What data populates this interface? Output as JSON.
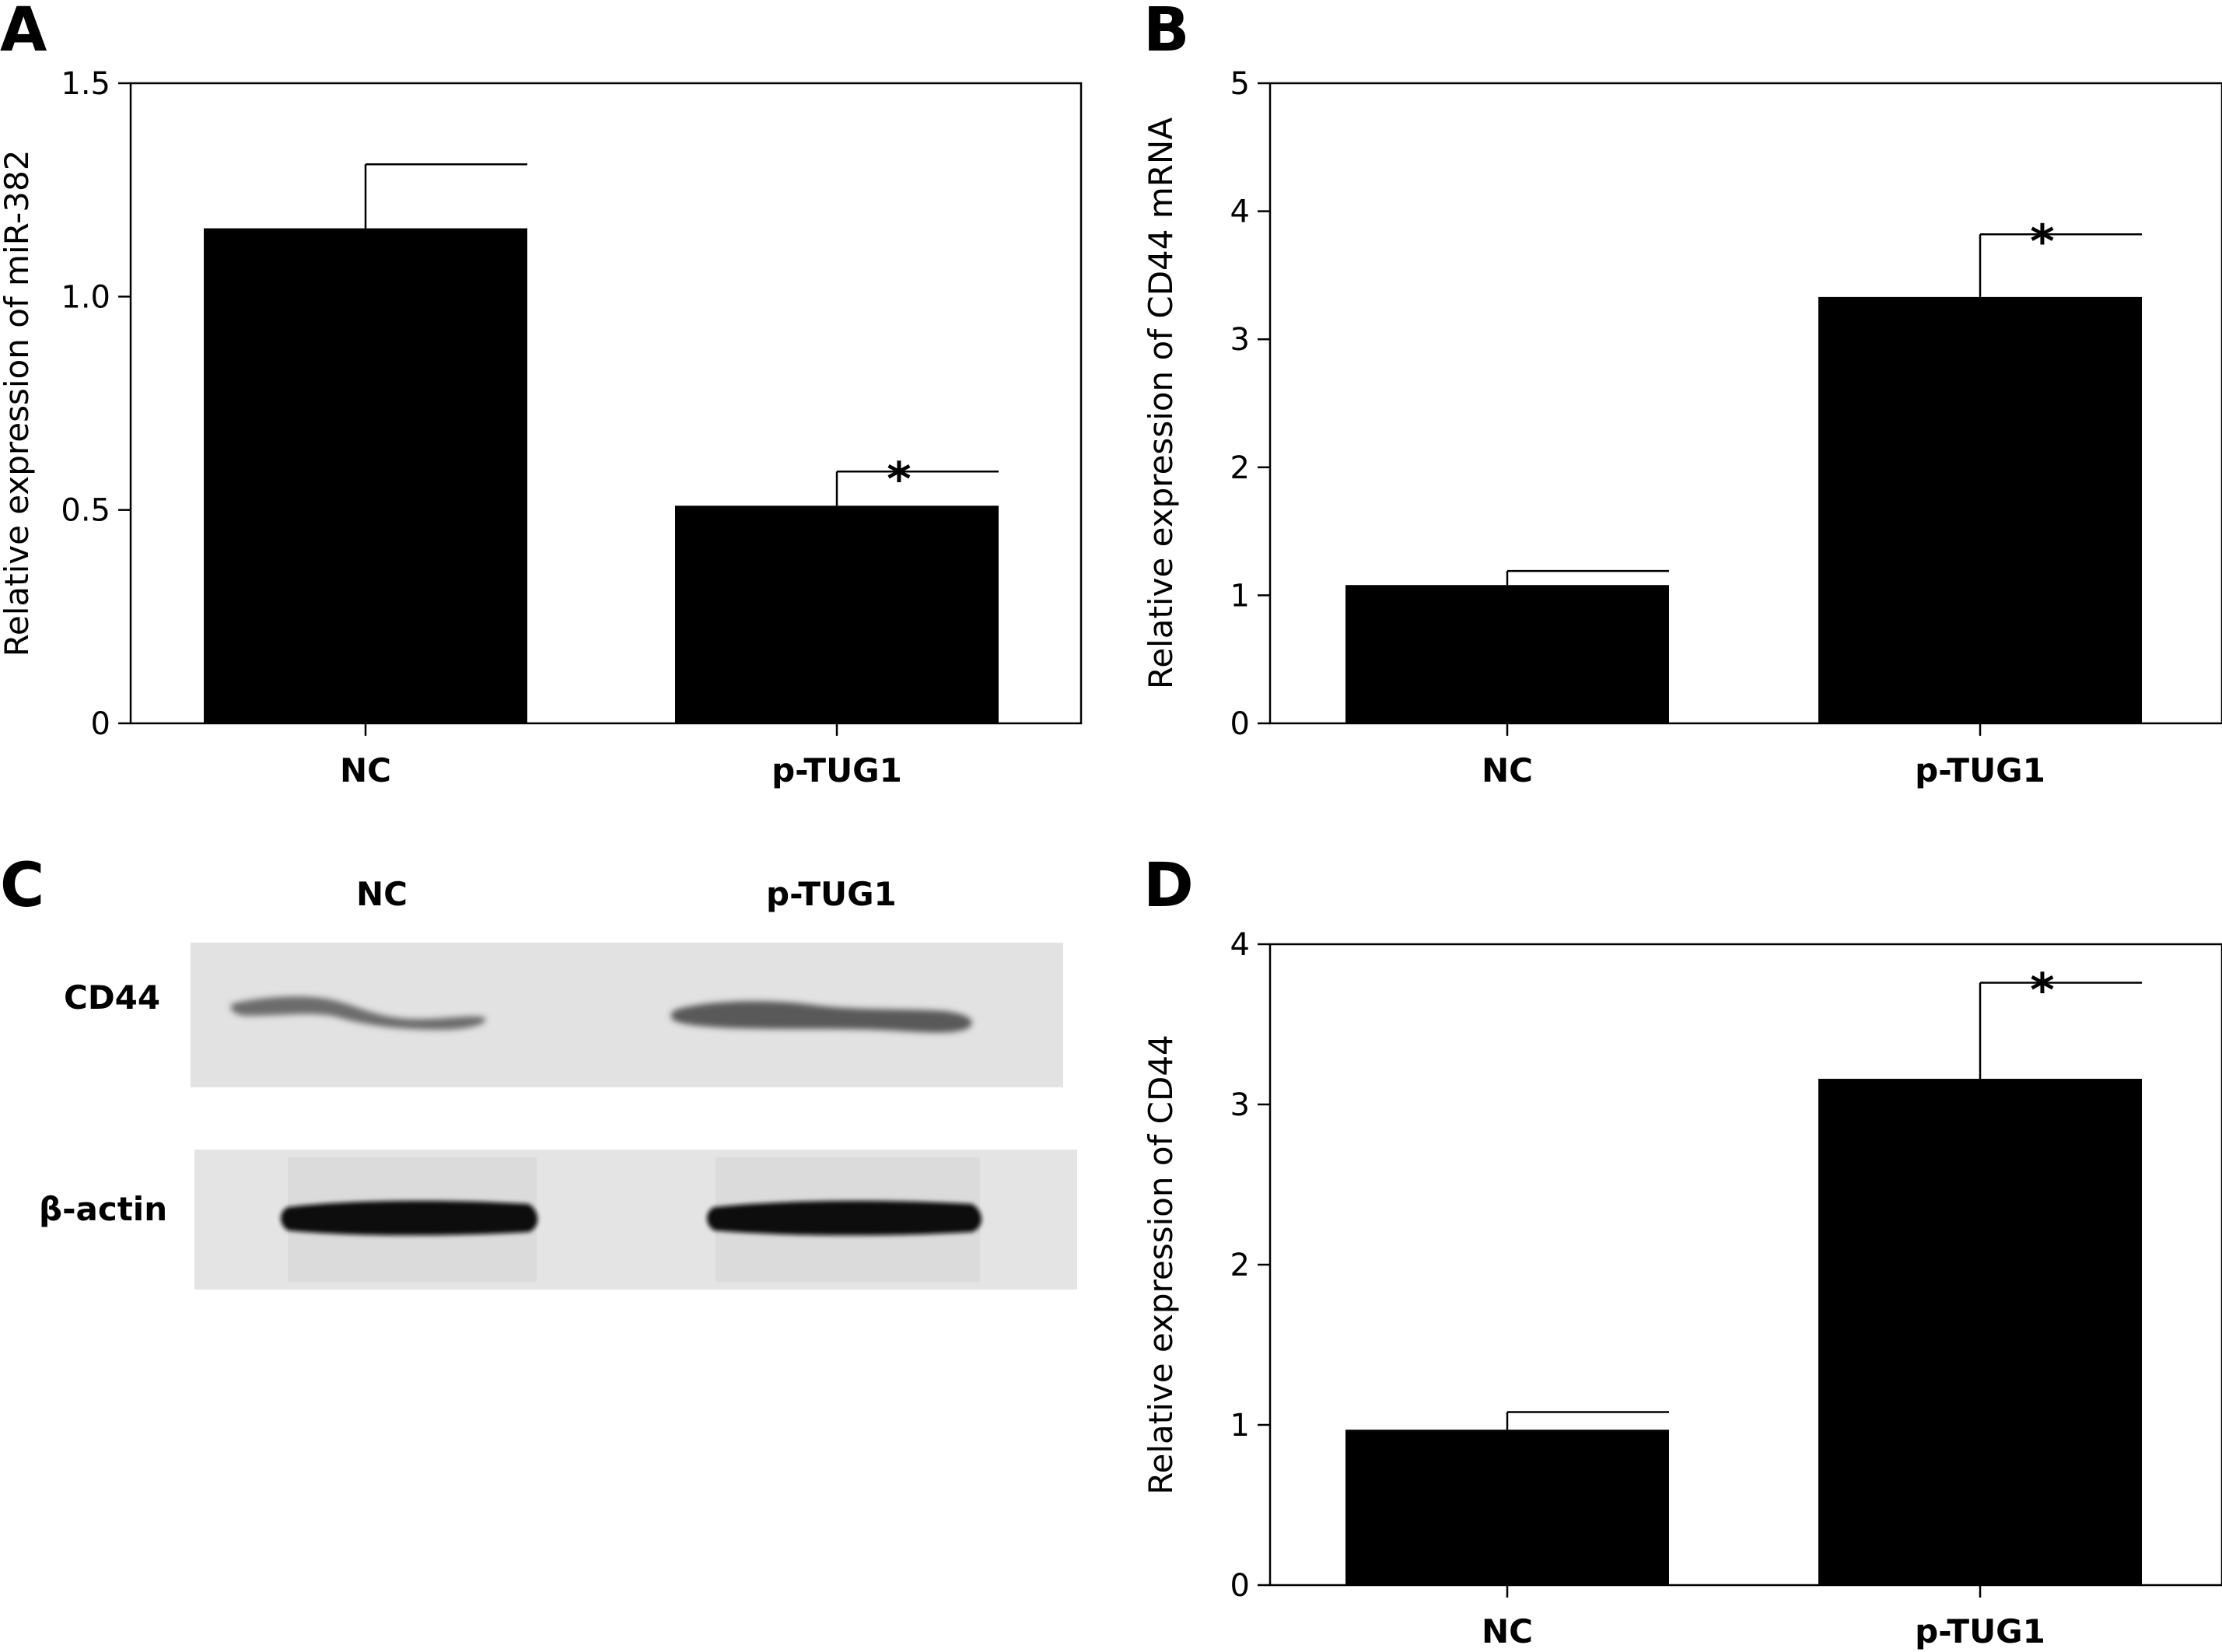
{
  "panels": {
    "a": {
      "letter": "A"
    },
    "b": {
      "letter": "B"
    },
    "c": {
      "letter": "C"
    },
    "d": {
      "letter": "D"
    }
  },
  "chart_data": [
    {
      "id": "a",
      "type": "bar",
      "categories": [
        "NC",
        "p-TUG1"
      ],
      "values": [
        1.16,
        0.51
      ],
      "errors": [
        0.15,
        0.08
      ],
      "significance": [
        "",
        "*"
      ],
      "ylabel": "Relative expression of miR-382",
      "ylim": [
        0,
        1.5
      ],
      "yticks": [
        "0",
        "0.5",
        "1.0",
        "1.5"
      ],
      "ytick_values": [
        0,
        0.5,
        1.0,
        1.5
      ],
      "grid": false
    },
    {
      "id": "b",
      "type": "bar",
      "categories": [
        "NC",
        "p-TUG1"
      ],
      "values": [
        1.08,
        3.33
      ],
      "errors": [
        0.11,
        0.49
      ],
      "significance": [
        "",
        "*"
      ],
      "ylabel": "Relative expression of CD44 mRNA",
      "ylim": [
        0,
        5
      ],
      "yticks": [
        "0",
        "1",
        "2",
        "3",
        "4",
        "5"
      ],
      "ytick_values": [
        0,
        1,
        2,
        3,
        4,
        5
      ],
      "grid": false
    },
    {
      "id": "d",
      "type": "bar",
      "categories": [
        "NC",
        "p-TUG1"
      ],
      "values": [
        0.97,
        3.16
      ],
      "errors": [
        0.11,
        0.6
      ],
      "significance": [
        "",
        "*"
      ],
      "ylabel": "Relative expression of CD44",
      "ylim": [
        0,
        4
      ],
      "yticks": [
        "0",
        "1",
        "2",
        "3",
        "4"
      ],
      "ytick_values": [
        0,
        1,
        2,
        3,
        4
      ],
      "grid": false
    }
  ],
  "blot": {
    "columns": [
      "NC",
      "p-TUG1"
    ],
    "rows": [
      "CD44",
      "β-actin"
    ]
  }
}
